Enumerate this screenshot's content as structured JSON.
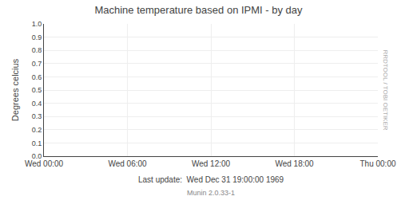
{
  "chart_data": {
    "type": "line",
    "title": "Machine temperature based on IPMI - by day",
    "y_label": "Degrees celcius",
    "categories": [
      "Wed 00:00",
      "Wed 06:00",
      "Wed 12:00",
      "Wed 18:00",
      "Thu 00:00"
    ],
    "series": [],
    "ylim": [
      0.0,
      1.0
    ],
    "yticks": [
      {
        "value": 0.0,
        "label": "0.0"
      },
      0.1,
      0.2,
      0.3,
      0.4,
      0.5,
      0.6,
      0.7,
      0.8,
      0.9,
      {
        "value": 1.0,
        "label": "1.0"
      }
    ],
    "grid": true,
    "annotations": [
      "Last update:  Wed Dec 31 19:00:00 1969",
      "Munin 2.0.33-1",
      "RRDTOOL / TOBI OETIKER"
    ]
  }
}
